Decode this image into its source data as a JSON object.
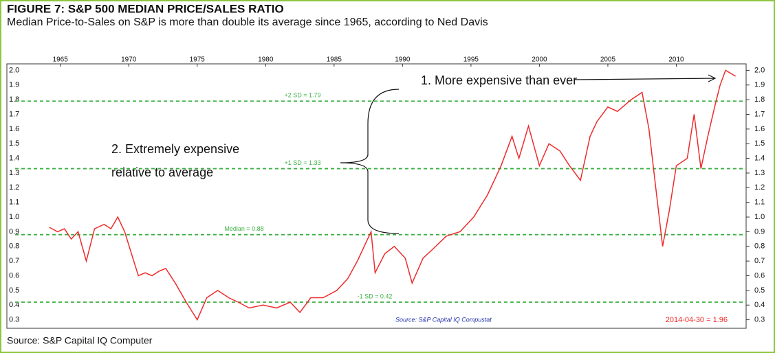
{
  "chart_data": {
    "type": "line",
    "title": "FIGURE 7: S&P 500 MEDIAN PRICE/SALES RATIO",
    "subtitle": "Median Price-to-Sales on S&P is more than double its average since 1965, according to Ned Davis",
    "footer": "Source: S&P Capital IQ Computer",
    "source_note": "Source: S&P Capital IQ Compustat",
    "last_value_label": "2014-04-30 = 1.96",
    "annotations": [
      "1. More expensive than ever",
      [
        "2. Extremely expensive",
        "relative to average"
      ]
    ],
    "xlim": [
      1961.7,
      2015.1
    ],
    "xticks": [
      1965,
      1970,
      1975,
      1980,
      1985,
      1990,
      1995,
      2000,
      2005,
      2010
    ],
    "ylim": [
      0.27,
      2.03
    ],
    "yticks": [
      0.3,
      0.4,
      0.5,
      0.6,
      0.7,
      0.8,
      0.9,
      {
        "value": 1,
        "label": "1.0"
      },
      1.1,
      1.2,
      1.3,
      1.4,
      1.5,
      1.6,
      1.7,
      1.8,
      1.9,
      {
        "value": 2,
        "label": "2.0"
      }
    ],
    "reference_lines": [
      {
        "value": 1.79,
        "label": "+2 SD = 1.79"
      },
      {
        "value": 1.33,
        "label": "+1 SD = 1.33"
      },
      {
        "value": 0.88,
        "label": "Median = 0.88"
      },
      {
        "value": 0.42,
        "label": "-1 SD = 0.42"
      }
    ],
    "reference_color": "#3cb043",
    "series": [
      {
        "name": "Median Price/Sales",
        "color": "#ee2b2b",
        "x": [
          1964.2,
          1964.8,
          1965.3,
          1965.8,
          1966.3,
          1966.9,
          1967.5,
          1968.2,
          1968.7,
          1969.2,
          1969.7,
          1970.1,
          1970.7,
          1971.2,
          1971.7,
          1972.2,
          1972.7,
          1973.4,
          1974.2,
          1975.0,
          1975.7,
          1976.5,
          1977.3,
          1978.0,
          1978.8,
          1979.8,
          1980.8,
          1981.8,
          1982.5,
          1983.3,
          1984.2,
          1985.2,
          1986.0,
          1986.7,
          1987.2,
          1987.7,
          1988.0,
          1988.7,
          1989.4,
          1990.2,
          1990.7,
          1991.5,
          1992.2,
          1993.2,
          1994.2,
          1995.2,
          1996.2,
          1997.2,
          1998.0,
          1998.5,
          1999.2,
          2000.0,
          2000.7,
          2001.5,
          2002.2,
          2003.0,
          2003.7,
          2004.2,
          2005.0,
          2005.7,
          2006.7,
          2007.5,
          2008.0,
          2008.5,
          2009.0,
          2009.5,
          2010.0,
          2010.8,
          2011.3,
          2011.8,
          2012.3,
          2012.8,
          2013.2,
          2013.6,
          2014.33
        ],
        "values": [
          0.93,
          0.9,
          0.92,
          0.85,
          0.9,
          0.7,
          0.92,
          0.95,
          0.92,
          1.0,
          0.9,
          0.78,
          0.6,
          0.62,
          0.6,
          0.63,
          0.65,
          0.55,
          0.42,
          0.3,
          0.45,
          0.5,
          0.45,
          0.42,
          0.38,
          0.4,
          0.38,
          0.42,
          0.35,
          0.45,
          0.45,
          0.5,
          0.58,
          0.7,
          0.8,
          0.9,
          0.62,
          0.75,
          0.8,
          0.72,
          0.55,
          0.72,
          0.78,
          0.87,
          0.9,
          1.0,
          1.15,
          1.35,
          1.55,
          1.4,
          1.62,
          1.35,
          1.5,
          1.45,
          1.35,
          1.25,
          1.55,
          1.65,
          1.75,
          1.72,
          1.8,
          1.85,
          1.6,
          1.2,
          0.8,
          1.05,
          1.35,
          1.4,
          1.7,
          1.33,
          1.55,
          1.75,
          1.9,
          2.0,
          1.96
        ]
      }
    ]
  }
}
